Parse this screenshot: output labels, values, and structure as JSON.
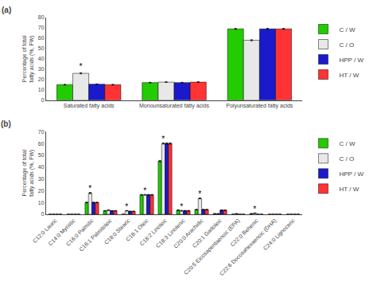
{
  "chart_data": [
    {
      "type": "bar",
      "title": "(a)",
      "ylabel": "Percentage of total fatty acids (%, FW)",
      "categories": [
        "Saturated fatty acids",
        "Monounsaturated fatty acids",
        "Polyunsaturated fatty acids"
      ],
      "series": [
        {
          "name": "C / W",
          "color": "#22cc00",
          "values": [
            15.0,
            17.0,
            69.0
          ],
          "errors": [
            0.3,
            0.3,
            0.5
          ]
        },
        {
          "name": "C / O",
          "color": "#e8e8e8",
          "values": [
            26.0,
            17.5,
            58.0
          ],
          "errors": [
            0.5,
            0.3,
            0.5
          ]
        },
        {
          "name": "HPP / W",
          "color": "#1a1acc",
          "values": [
            15.5,
            17.0,
            69.0
          ],
          "errors": [
            0.3,
            0.3,
            0.5
          ]
        },
        {
          "name": "HT / W",
          "color": "#ff3333",
          "values": [
            15.0,
            17.5,
            69.0
          ],
          "errors": [
            0.3,
            0.3,
            0.5
          ]
        }
      ],
      "annotations": [
        {
          "text": "*",
          "series": "C / O",
          "category": "Saturated fatty acids"
        }
      ],
      "ylim": [
        0,
        80
      ],
      "yticks": [
        0,
        10,
        20,
        30,
        40,
        50,
        60,
        70,
        80
      ],
      "grid": false,
      "legend": "right"
    },
    {
      "type": "bar",
      "title": "(b)",
      "ylabel": "Percentage of total fatty acids (%, FW)",
      "categories": [
        "C12:0 Lauric",
        "C14:0 Myristic",
        "C16:0 Palmitic",
        "C16:1 Palmitoleic",
        "C18:0 Stearic",
        "C18:1 Oleic",
        "C18:2 Linoleic",
        "C18:3 Linolenic",
        "C20:0 Arachidic",
        "C20:1 Gadoleic",
        "C20:5 Eicosapentaenoic (EPA)",
        "C22:0 Behenic",
        "C22:6 Docosahexaenoic (DHA)",
        "C24:0 Lignoceric"
      ],
      "series": [
        {
          "name": "C / W",
          "color": "#22cc00",
          "values": [
            0.0,
            0.0,
            10.0,
            3.0,
            0.0,
            16.5,
            45.0,
            3.5,
            4.0,
            0.5,
            0.0,
            0.5,
            0.0,
            0.0
          ],
          "errors": [
            0.0,
            0.0,
            0.3,
            0.2,
            0.0,
            0.3,
            0.5,
            0.3,
            0.2,
            0.1,
            0.0,
            0.1,
            0.0,
            0.0
          ]
        },
        {
          "name": "C / O",
          "color": "#e8e8e8",
          "values": [
            0.0,
            0.0,
            18.0,
            3.5,
            3.0,
            16.5,
            60.0,
            3.0,
            13.5,
            0.5,
            0.5,
            1.0,
            0.0,
            0.0
          ],
          "errors": [
            0.0,
            0.0,
            0.5,
            0.2,
            0.2,
            0.3,
            0.5,
            0.3,
            0.3,
            0.1,
            0.1,
            0.1,
            0.0,
            0.0
          ]
        },
        {
          "name": "HPP / W",
          "color": "#1a1acc",
          "values": [
            0.0,
            0.0,
            10.0,
            3.0,
            2.5,
            16.5,
            60.0,
            3.0,
            4.0,
            3.5,
            0.0,
            0.0,
            0.0,
            0.0
          ],
          "errors": [
            0.0,
            0.0,
            0.3,
            0.2,
            0.2,
            0.3,
            0.5,
            0.3,
            0.2,
            0.2,
            0.0,
            0.0,
            0.0,
            0.0
          ]
        },
        {
          "name": "HT / W",
          "color": "#ff3333",
          "values": [
            0.0,
            0.0,
            10.0,
            3.0,
            2.5,
            16.5,
            60.0,
            3.0,
            4.0,
            3.5,
            0.0,
            0.0,
            0.0,
            0.0
          ],
          "errors": [
            0.0,
            0.0,
            0.3,
            0.2,
            0.2,
            0.3,
            0.5,
            0.3,
            0.2,
            0.2,
            0.0,
            0.0,
            0.0,
            0.0
          ]
        }
      ],
      "annotations": [
        {
          "text": "*",
          "series": "C / O",
          "category": "C16:0 Palmitic"
        },
        {
          "text": "*",
          "series": "C / O",
          "category": "C18:0 Stearic"
        },
        {
          "text": "*",
          "series": "C / O",
          "category": "C18:1 Oleic"
        },
        {
          "text": "*",
          "series": "C / O",
          "category": "C18:2 Linoleic"
        },
        {
          "text": "*",
          "series": "C / O",
          "category": "C18:3 Linolenic"
        },
        {
          "text": "*",
          "series": "C / O",
          "category": "C20:0 Arachidic"
        },
        {
          "text": "*",
          "series": "C / O",
          "category": "C22:0 Behenic"
        }
      ],
      "ylim": [
        0,
        70
      ],
      "yticks": [
        0,
        10,
        20,
        30,
        40,
        50,
        60,
        70
      ],
      "grid": false,
      "legend": "right"
    }
  ]
}
